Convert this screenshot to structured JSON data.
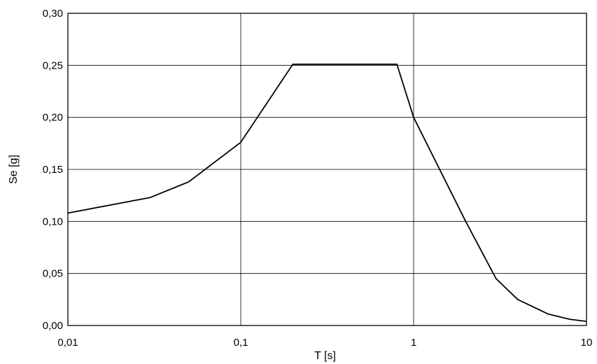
{
  "chart_data": {
    "type": "line",
    "title": "",
    "xlabel": "T [s]",
    "ylabel": "Se [g]",
    "x_scale": "log",
    "xlim": [
      0.01,
      10
    ],
    "ylim": [
      0,
      0.3
    ],
    "grid": true,
    "legend": "none",
    "x_ticks": [
      {
        "value": 0.01,
        "label": "0,01"
      },
      {
        "value": 0.1,
        "label": "0,1"
      },
      {
        "value": 1,
        "label": "1"
      },
      {
        "value": 10,
        "label": "10"
      }
    ],
    "y_ticks": [
      {
        "value": 0.0,
        "label": "0,00"
      },
      {
        "value": 0.05,
        "label": "0,05"
      },
      {
        "value": 0.1,
        "label": "0,10"
      },
      {
        "value": 0.15,
        "label": "0,15"
      },
      {
        "value": 0.2,
        "label": "0,20"
      },
      {
        "value": 0.25,
        "label": "0,25"
      },
      {
        "value": 0.3,
        "label": "0,30"
      }
    ],
    "series": [
      {
        "color": "#000000",
        "x": [
          0.01,
          0.03,
          0.05,
          0.1,
          0.2,
          0.8,
          1.0,
          2.0,
          3.0,
          4.0,
          6.0,
          8.0,
          10.0
        ],
        "y": [
          0.108,
          0.123,
          0.138,
          0.176,
          0.251,
          0.251,
          0.2,
          0.1,
          0.045,
          0.025,
          0.011,
          0.006,
          0.004
        ]
      }
    ]
  }
}
